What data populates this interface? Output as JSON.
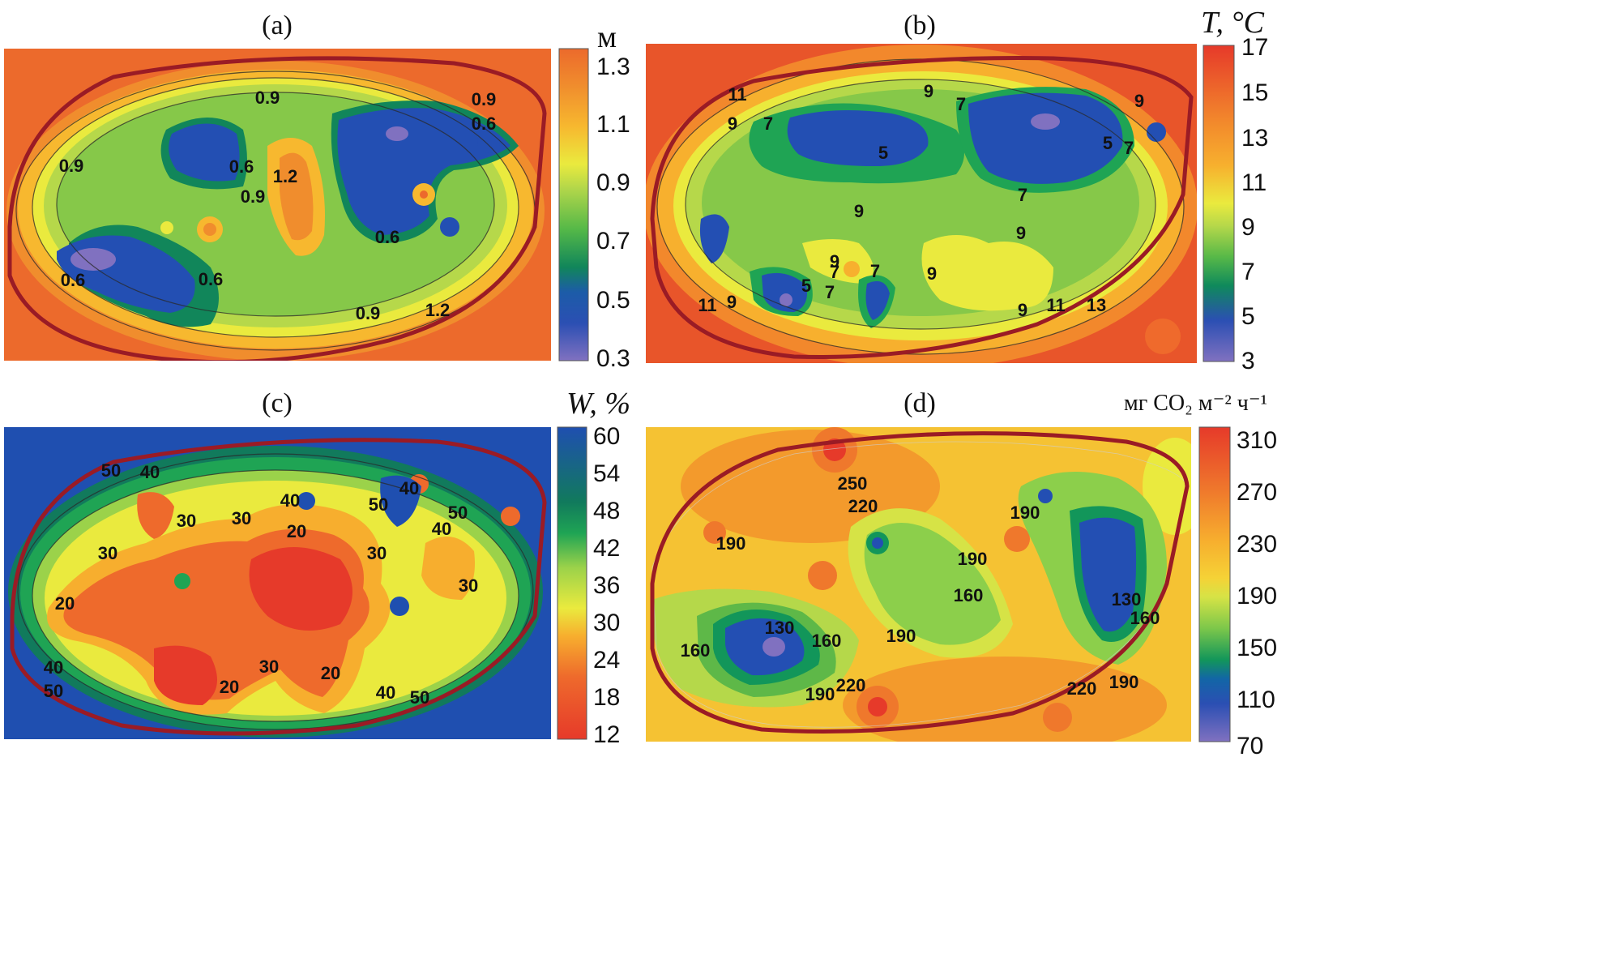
{
  "chart_data": [
    {
      "type": "heatmap",
      "panel": "(a)",
      "title": "(a)",
      "unit_label": "м",
      "colorbar_ticks": [
        "1.3",
        "1.1",
        "0.9",
        "0.7",
        "0.5",
        "0.3"
      ],
      "value_range": [
        0.3,
        1.3
      ],
      "contour_labels": [
        "0.9",
        "0.9",
        "0.6",
        "0.9",
        "0.6",
        "0.9",
        "1.2",
        "0.6",
        "0.6",
        "0.6",
        "0.9",
        "1.2"
      ],
      "colors": {
        "high": "#ee6a2c",
        "mid_high": "#f7b82f",
        "mid": "#eaea3e",
        "mid_low": "#8ccf4b",
        "low": "#1fa454",
        "lowest": "#214fb0",
        "min": "#8071c0"
      }
    },
    {
      "type": "heatmap",
      "panel": "(b)",
      "title": "(b)",
      "unit_label": "T, °C",
      "colorbar_ticks": [
        "17",
        "15",
        "13",
        "11",
        "9",
        "7",
        "5",
        "3"
      ],
      "value_range": [
        3,
        17
      ],
      "contour_labels": [
        "11",
        "9",
        "7",
        "9",
        "7",
        "9",
        "5",
        "5",
        "7",
        "7",
        "9",
        "9",
        "7",
        "9",
        "5",
        "7",
        "7",
        "9",
        "11",
        "9",
        "9",
        "11",
        "13"
      ],
      "colors": {
        "high": "#e63a2a",
        "mid_high": "#f39a2c",
        "mid": "#eaea3e",
        "mid_low": "#8ccf4b",
        "low": "#1fa454",
        "lowest": "#214fb0",
        "min": "#8071c0"
      }
    },
    {
      "type": "heatmap",
      "panel": "(c)",
      "title": "(c)",
      "unit_label": "W, %",
      "colorbar_ticks": [
        "60",
        "54",
        "48",
        "42",
        "36",
        "30",
        "24",
        "18",
        "12"
      ],
      "value_range": [
        12,
        60
      ],
      "contour_labels": [
        "50",
        "40",
        "30",
        "30",
        "40",
        "20",
        "30",
        "40",
        "50",
        "50",
        "40",
        "30",
        "30",
        "20",
        "30",
        "20",
        "20",
        "40",
        "50",
        "40",
        "50"
      ],
      "colors": {
        "high": "#1f4fb0",
        "mid_high": "#1fa454",
        "mid": "#eaea3e",
        "mid_low": "#f39a2c",
        "low": "#e63a2a"
      }
    },
    {
      "type": "heatmap",
      "panel": "(d)",
      "title": "(d)",
      "unit_label": "мг CO₂ м⁻² ч⁻¹",
      "colorbar_ticks": [
        "310",
        "270",
        "230",
        "190",
        "150",
        "110",
        "70"
      ],
      "value_range": [
        70,
        310
      ],
      "contour_labels": [
        "250",
        "220",
        "190",
        "190",
        "190",
        "160",
        "130",
        "160",
        "160",
        "190",
        "130",
        "160",
        "190",
        "220",
        "220",
        "190"
      ],
      "colors": {
        "high": "#e63a2a",
        "mid_high": "#f39a2c",
        "mid": "#eaea3e",
        "mid_low": "#8ccf4b",
        "low": "#1fa454",
        "lowest": "#214fb0",
        "min": "#8071c0"
      }
    }
  ]
}
